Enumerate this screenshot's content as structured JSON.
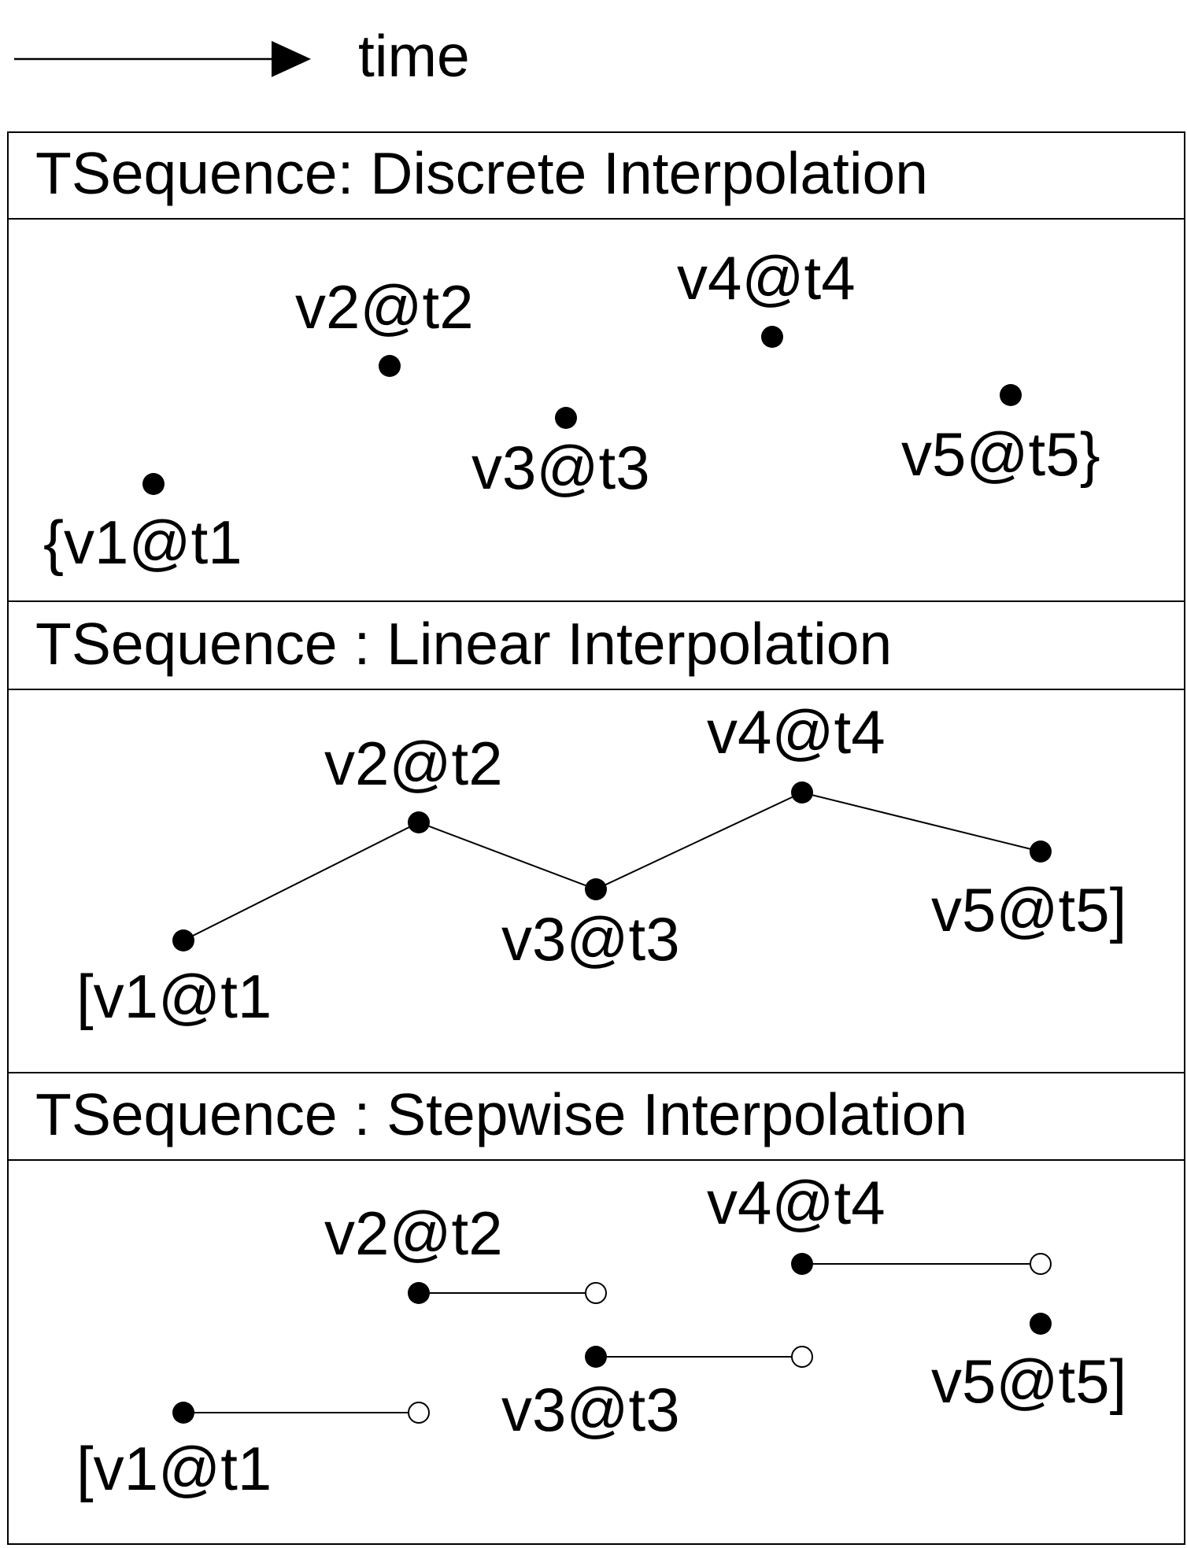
{
  "legend": {
    "label": "time"
  },
  "panels": [
    {
      "id": "discrete",
      "title": "TSequence: Discrete Interpolation",
      "labels": [
        "{v1@t1",
        "v2@t2",
        "v3@t3",
        "v4@t4",
        "v5@t5}"
      ]
    },
    {
      "id": "linear",
      "title": "TSequence : Linear Interpolation",
      "labels": [
        "[v1@t1",
        "v2@t2",
        "v3@t3",
        "v4@t4",
        "v5@t5]"
      ]
    },
    {
      "id": "stepwise",
      "title": "TSequence : Stepwise Interpolation",
      "labels": [
        "[v1@t1",
        "v2@t2",
        "v3@t3",
        "v4@t4",
        "v5@t5]"
      ]
    }
  ],
  "colors": {
    "stroke": "#000000",
    "fill_closed": "#000000",
    "fill_open": "#ffffff"
  }
}
